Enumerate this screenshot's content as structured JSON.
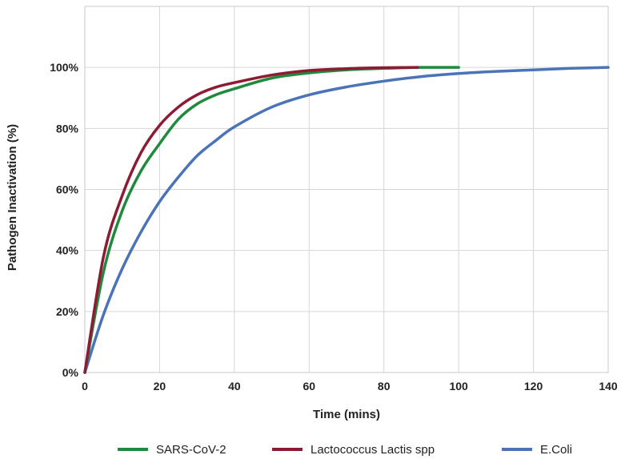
{
  "chart_data": {
    "type": "line",
    "title": "",
    "xlabel": "Time (mins)",
    "ylabel": "Pathogen Inactivation (%)",
    "xlim": [
      0,
      140
    ],
    "ylim": [
      0,
      100
    ],
    "x_ticks": [
      0,
      20,
      40,
      60,
      80,
      100,
      120,
      140
    ],
    "x_tick_labels": [
      "0",
      "20",
      "40",
      "60",
      "80",
      "100",
      "120",
      "140"
    ],
    "y_ticks": [
      0,
      20,
      40,
      60,
      80,
      100
    ],
    "y_tick_labels": [
      "0%",
      "20%",
      "40%",
      "60%",
      "80%",
      "100%"
    ],
    "grid": true,
    "legend_position": "bottom",
    "series": [
      {
        "name": "SARS-CoV-2",
        "color": "#1f8a3c",
        "x": [
          0,
          5,
          10,
          15,
          20,
          25,
          30,
          35,
          40,
          50,
          60,
          70,
          80,
          90,
          100
        ],
        "y": [
          0,
          33,
          53,
          66,
          75,
          83,
          88,
          91,
          93,
          96.5,
          98.2,
          99.2,
          99.7,
          100,
          100
        ]
      },
      {
        "name": "Lactococcus Lactis spp",
        "color": "#8e1b34",
        "x": [
          0,
          5,
          10,
          15,
          20,
          25,
          30,
          35,
          40,
          50,
          60,
          70,
          80,
          89
        ],
        "y": [
          0,
          38,
          58,
          72,
          81,
          87,
          91,
          93.5,
          95,
          97.5,
          99,
          99.6,
          99.9,
          100
        ]
      },
      {
        "name": "E.Coli",
        "color": "#4a73b8",
        "x": [
          0,
          5,
          10,
          15,
          20,
          25,
          30,
          35,
          40,
          50,
          60,
          70,
          80,
          90,
          100,
          110,
          120,
          130,
          140
        ],
        "y": [
          0,
          19,
          34,
          46,
          56,
          64,
          71,
          76,
          80.5,
          87,
          91,
          93.6,
          95.5,
          97,
          98,
          98.7,
          99.2,
          99.7,
          100
        ]
      }
    ]
  }
}
